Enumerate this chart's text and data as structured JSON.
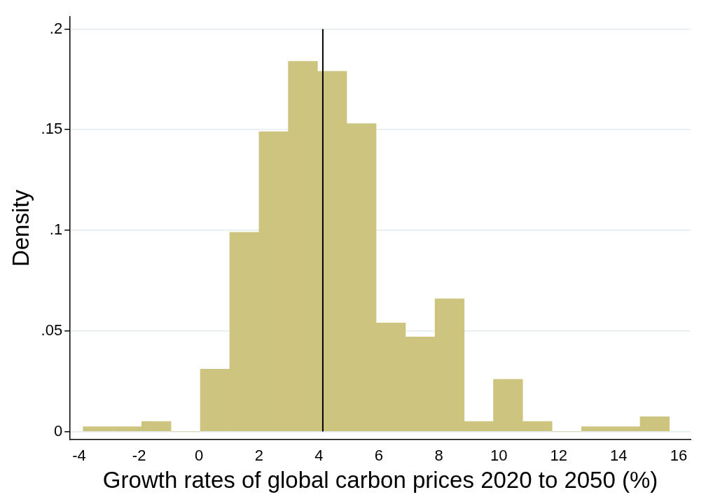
{
  "chart_data": {
    "type": "histogram",
    "xlabel": "Growth rates of global carbon prices 2020 to 2050 (%)",
    "ylabel": "Density",
    "bins": [
      -3.87,
      -2.89,
      -1.91,
      -0.94,
      0.04,
      1.02,
      2.0,
      2.98,
      3.95,
      4.93,
      5.91,
      6.89,
      7.87,
      8.85,
      9.82,
      10.8,
      11.78,
      12.76,
      13.74,
      14.72,
      15.69
    ],
    "values": [
      0.0024,
      0.0024,
      0.005,
      0,
      0.031,
      0.099,
      0.149,
      0.184,
      0.179,
      0.153,
      0.054,
      0.047,
      0.066,
      0.005,
      0.026,
      0.005,
      0,
      0.0024,
      0.0024,
      0.0074
    ],
    "color": "#cdc47f",
    "xlim": [
      -4.3,
      16.4
    ],
    "xticks": [
      -4,
      -2,
      0,
      2,
      4,
      6,
      8,
      10,
      12,
      14,
      16
    ],
    "ylim": [
      -0.004,
      0.206
    ],
    "yticks": [
      {
        "value": 0,
        "label": "0"
      },
      {
        "value": 0.05,
        "label": ".05"
      },
      {
        "value": 0.1,
        "label": ".1"
      },
      {
        "value": 0.15,
        "label": ".15"
      },
      {
        "value": 0.2,
        "label": ".2"
      }
    ],
    "grid": "y",
    "ref_lines": [
      {
        "axis": "x",
        "value": 4.13,
        "color": "#000000"
      }
    ]
  }
}
